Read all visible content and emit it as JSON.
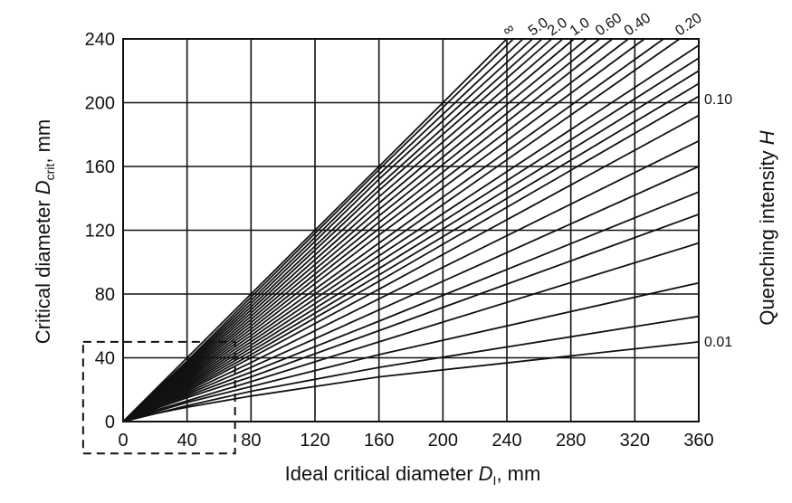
{
  "chart_data": {
    "type": "line",
    "title": "",
    "xlabel": {
      "main": "Ideal critical diameter ",
      "var": "D",
      "sub": "I",
      "unit": ", mm"
    },
    "ylabel": {
      "main": "Critical diameter ",
      "var": "D",
      "sub": "crit",
      "unit": ", mm"
    },
    "rlabel": {
      "main": "Quenching intensity ",
      "var": "H"
    },
    "xlim": [
      0,
      360
    ],
    "ylim": [
      0,
      240
    ],
    "xticks": [
      "0",
      "40",
      "80",
      "120",
      "160",
      "200",
      "240",
      "280",
      "320",
      "360"
    ],
    "yticks": [
      "0",
      "40",
      "80",
      "120",
      "160",
      "200",
      "240"
    ],
    "grid": true,
    "top_labels": [
      {
        "text": "∞",
        "x": 240
      },
      {
        "text": "5.0",
        "x": 256
      },
      {
        "text": "2.0",
        "x": 268
      },
      {
        "text": "1.0",
        "x": 282
      },
      {
        "text": "0.60",
        "x": 298
      },
      {
        "text": "0.40",
        "x": 316
      },
      {
        "text": "0.20",
        "x": 348
      }
    ],
    "right_labels": [
      {
        "text": "0.10",
        "y": 202
      },
      {
        "text": "0.01",
        "y": 50
      }
    ],
    "series": [
      {
        "x": [
          0,
          20,
          40,
          80,
          160,
          240
        ],
        "y": [
          0,
          20,
          40,
          80,
          160,
          240
        ]
      },
      {
        "x": [
          0,
          20,
          40,
          80,
          160,
          244
        ],
        "y": [
          0,
          19,
          38,
          78,
          158,
          240
        ]
      },
      {
        "x": [
          0,
          20,
          40,
          80,
          160,
          250
        ],
        "y": [
          0,
          19,
          37,
          76,
          155,
          240
        ]
      },
      {
        "x": [
          0,
          20,
          40,
          80,
          160,
          256
        ],
        "y": [
          0,
          18,
          36,
          74,
          152,
          240
        ]
      },
      {
        "x": [
          0,
          20,
          40,
          80,
          160,
          262
        ],
        "y": [
          0,
          18,
          35,
          72,
          148,
          240
        ]
      },
      {
        "x": [
          0,
          20,
          40,
          80,
          160,
          268
        ],
        "y": [
          0,
          17,
          34,
          70,
          145,
          240
        ]
      },
      {
        "x": [
          0,
          20,
          40,
          80,
          160,
          275
        ],
        "y": [
          0,
          17,
          33,
          68,
          141,
          240
        ]
      },
      {
        "x": [
          0,
          20,
          40,
          80,
          160,
          282
        ],
        "y": [
          0,
          16,
          32,
          66,
          137,
          240
        ]
      },
      {
        "x": [
          0,
          20,
          40,
          80,
          160,
          290
        ],
        "y": [
          0,
          16,
          31,
          64,
          133,
          240
        ]
      },
      {
        "x": [
          0,
          20,
          40,
          80,
          160,
          298
        ],
        "y": [
          0,
          15,
          30,
          62,
          129,
          240
        ]
      },
      {
        "x": [
          0,
          20,
          40,
          80,
          160,
          306
        ],
        "y": [
          0,
          15,
          29,
          60,
          125,
          240
        ]
      },
      {
        "x": [
          0,
          20,
          40,
          80,
          160,
          316
        ],
        "y": [
          0,
          14,
          28,
          58,
          121,
          240
        ]
      },
      {
        "x": [
          0,
          20,
          40,
          80,
          160,
          326
        ],
        "y": [
          0,
          14,
          27,
          56,
          117,
          240
        ]
      },
      {
        "x": [
          0,
          20,
          40,
          80,
          160,
          338
        ],
        "y": [
          0,
          13,
          26,
          54,
          112,
          240
        ]
      },
      {
        "x": [
          0,
          20,
          40,
          80,
          160,
          348
        ],
        "y": [
          0,
          13,
          25,
          52,
          108,
          240
        ]
      },
      {
        "x": [
          0,
          20,
          40,
          80,
          160,
          360
        ],
        "y": [
          0,
          12,
          24,
          50,
          104,
          236
        ]
      },
      {
        "x": [
          0,
          20,
          40,
          80,
          160,
          360
        ],
        "y": [
          0,
          12,
          23,
          48,
          100,
          228
        ]
      },
      {
        "x": [
          0,
          20,
          40,
          80,
          160,
          360
        ],
        "y": [
          0,
          11,
          22,
          46,
          96,
          220
        ]
      },
      {
        "x": [
          0,
          20,
          40,
          80,
          160,
          360
        ],
        "y": [
          0,
          11,
          21,
          44,
          92,
          212
        ]
      },
      {
        "x": [
          0,
          20,
          40,
          80,
          160,
          360
        ],
        "y": [
          0,
          10,
          20,
          42,
          88,
          204
        ]
      },
      {
        "x": [
          0,
          20,
          40,
          80,
          160,
          360
        ],
        "y": [
          0,
          10,
          19,
          40,
          83,
          192
        ]
      },
      {
        "x": [
          0,
          20,
          40,
          80,
          160,
          360
        ],
        "y": [
          0,
          9,
          18,
          37,
          77,
          176
        ]
      },
      {
        "x": [
          0,
          20,
          40,
          80,
          160,
          360
        ],
        "y": [
          0,
          9,
          17,
          34,
          70,
          160
        ]
      },
      {
        "x": [
          0,
          20,
          40,
          80,
          160,
          360
        ],
        "y": [
          0,
          8,
          16,
          31,
          63,
          144
        ]
      },
      {
        "x": [
          0,
          20,
          40,
          80,
          160,
          360
        ],
        "y": [
          0,
          8,
          15,
          28,
          57,
          130
        ]
      },
      {
        "x": [
          0,
          20,
          40,
          80,
          160,
          360
        ],
        "y": [
          0,
          7,
          13,
          25,
          50,
          112
        ]
      },
      {
        "x": [
          0,
          20,
          40,
          80,
          160,
          360
        ],
        "y": [
          0,
          6,
          12,
          22,
          42,
          87
        ]
      },
      {
        "x": [
          0,
          20,
          40,
          80,
          160,
          360
        ],
        "y": [
          0,
          5,
          10,
          19,
          34,
          66
        ]
      },
      {
        "x": [
          0,
          20,
          40,
          80,
          160,
          360
        ],
        "y": [
          0,
          5,
          9,
          16,
          28,
          50
        ]
      }
    ],
    "inset_region": {
      "x": [
        -25,
        70
      ],
      "y": [
        -20,
        50
      ],
      "style": "dashed"
    }
  }
}
